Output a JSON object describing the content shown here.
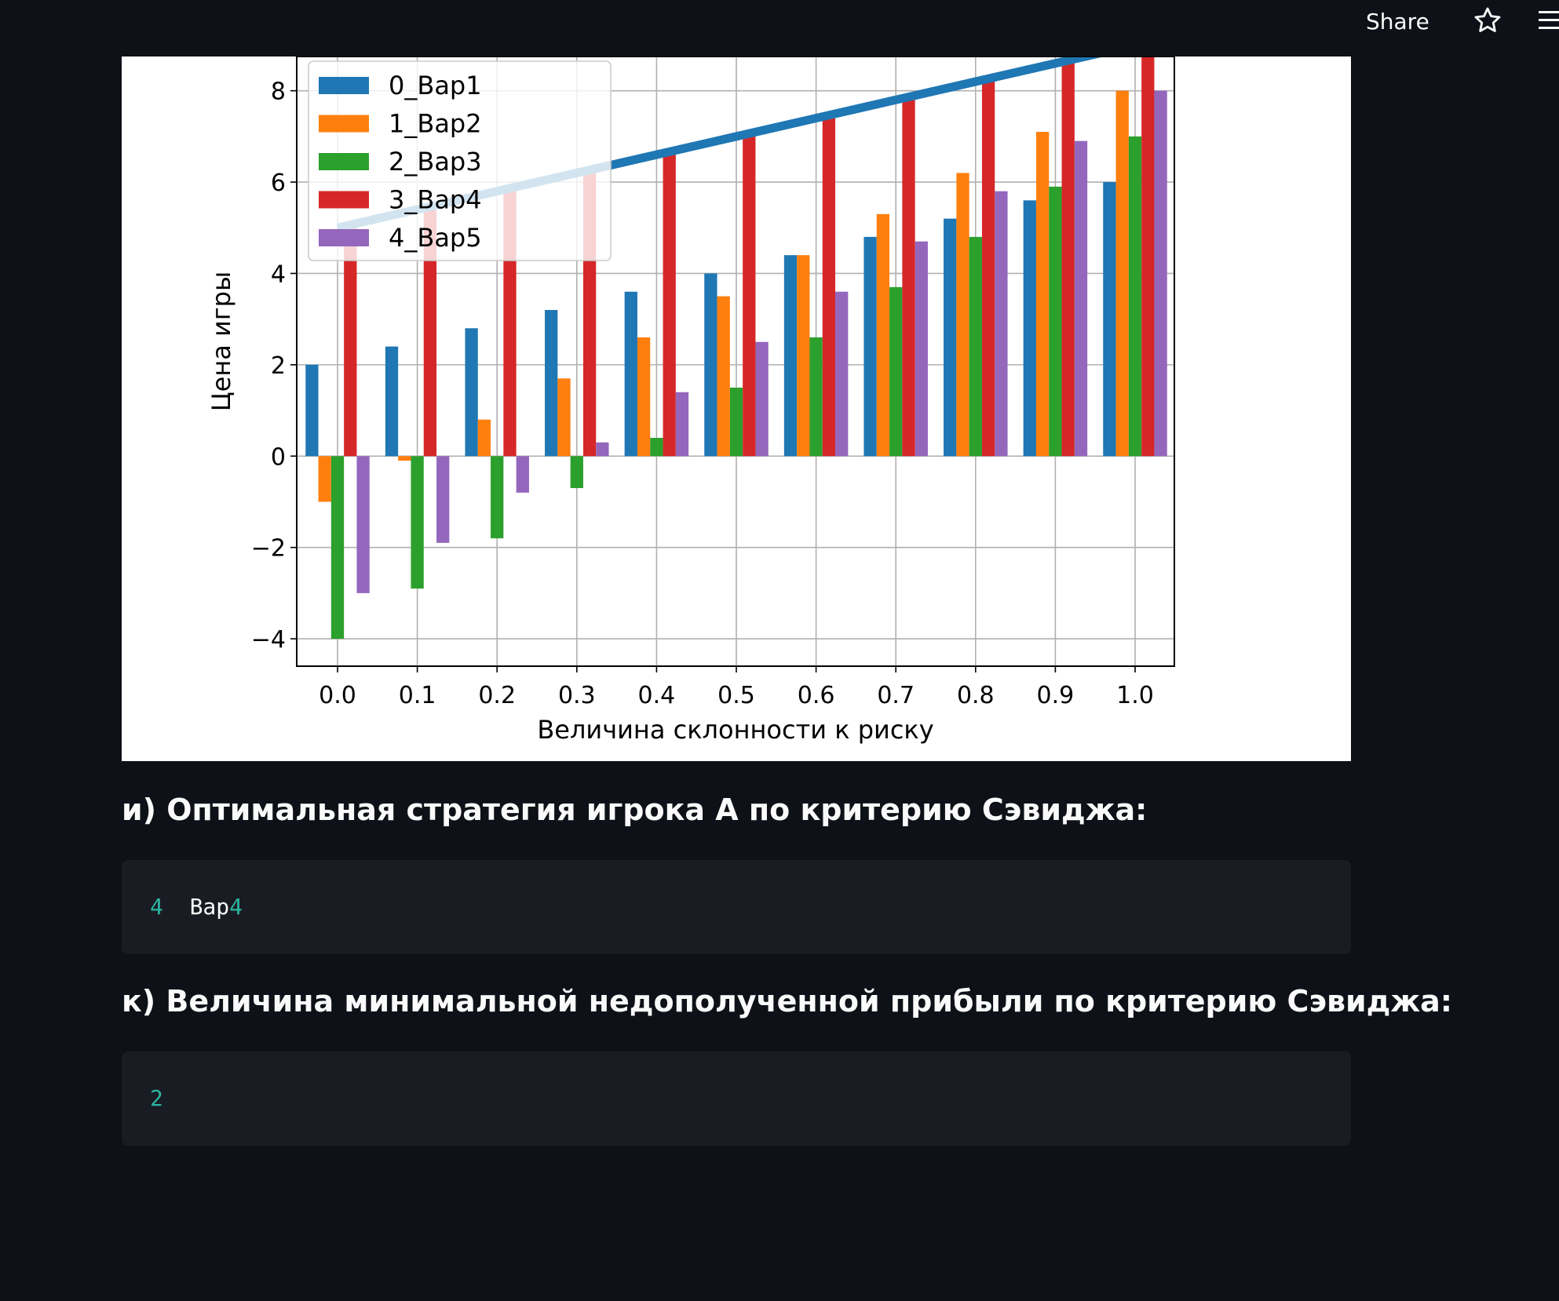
{
  "header": {
    "share_label": "Share",
    "icons": [
      "star-icon",
      "hamburger-menu-icon"
    ]
  },
  "chart_data": {
    "type": "bar",
    "xlabel": "Величина склонности к риску",
    "ylabel": "Цена игры",
    "categories": [
      "0.0",
      "0.1",
      "0.2",
      "0.3",
      "0.4",
      "0.5",
      "0.6",
      "0.7",
      "0.8",
      "0.9",
      "1.0"
    ],
    "yticks": [
      "−4",
      "−2",
      "0",
      "2",
      "4",
      "6",
      "8"
    ],
    "ylim": [
      -4.6,
      8.75
    ],
    "grid": true,
    "legend_position": "upper-left",
    "series": [
      {
        "name": "0_Вар1",
        "color": "#1f77b4",
        "values": [
          2.0,
          2.4,
          2.8,
          3.2,
          3.6,
          4.0,
          4.4,
          4.8,
          5.2,
          5.6,
          6.0
        ]
      },
      {
        "name": "1_Вар2",
        "color": "#ff7f0e",
        "values": [
          -1.0,
          -0.1,
          0.8,
          1.7,
          2.6,
          3.5,
          4.4,
          5.3,
          6.2,
          7.1,
          8.0
        ]
      },
      {
        "name": "2_Вар3",
        "color": "#2ca02c",
        "values": [
          -4.0,
          -2.9,
          -1.8,
          -0.7,
          0.4,
          1.5,
          2.6,
          3.7,
          4.8,
          5.9,
          7.0
        ]
      },
      {
        "name": "3_Вар4",
        "color": "#d62728",
        "values": [
          5.0,
          5.4,
          5.8,
          6.2,
          6.6,
          7.0,
          7.4,
          7.8,
          8.2,
          8.6,
          9.0
        ]
      },
      {
        "name": "4_Вар5",
        "color": "#9467bd",
        "values": [
          -3.0,
          -1.9,
          -0.8,
          0.3,
          1.4,
          2.5,
          3.6,
          4.7,
          5.8,
          6.9,
          8.0
        ]
      }
    ],
    "line": {
      "color": "#1f77b4",
      "values": [
        5.0,
        5.4,
        5.8,
        6.2,
        6.6,
        7.0,
        7.4,
        7.8,
        8.2,
        8.6,
        9.0
      ]
    }
  },
  "results": {
    "savage_strategy_heading": "и) Оптимальная стратегия игрока А по критерию Сэвиджа:",
    "savage_strategy_index": "4",
    "savage_strategy_name_text": "Вар",
    "savage_strategy_name_num": "4",
    "min_regret_heading": "к) Величина минимальной недополученной прибыли по критерию Сэвиджа:",
    "min_regret_value": "2"
  }
}
